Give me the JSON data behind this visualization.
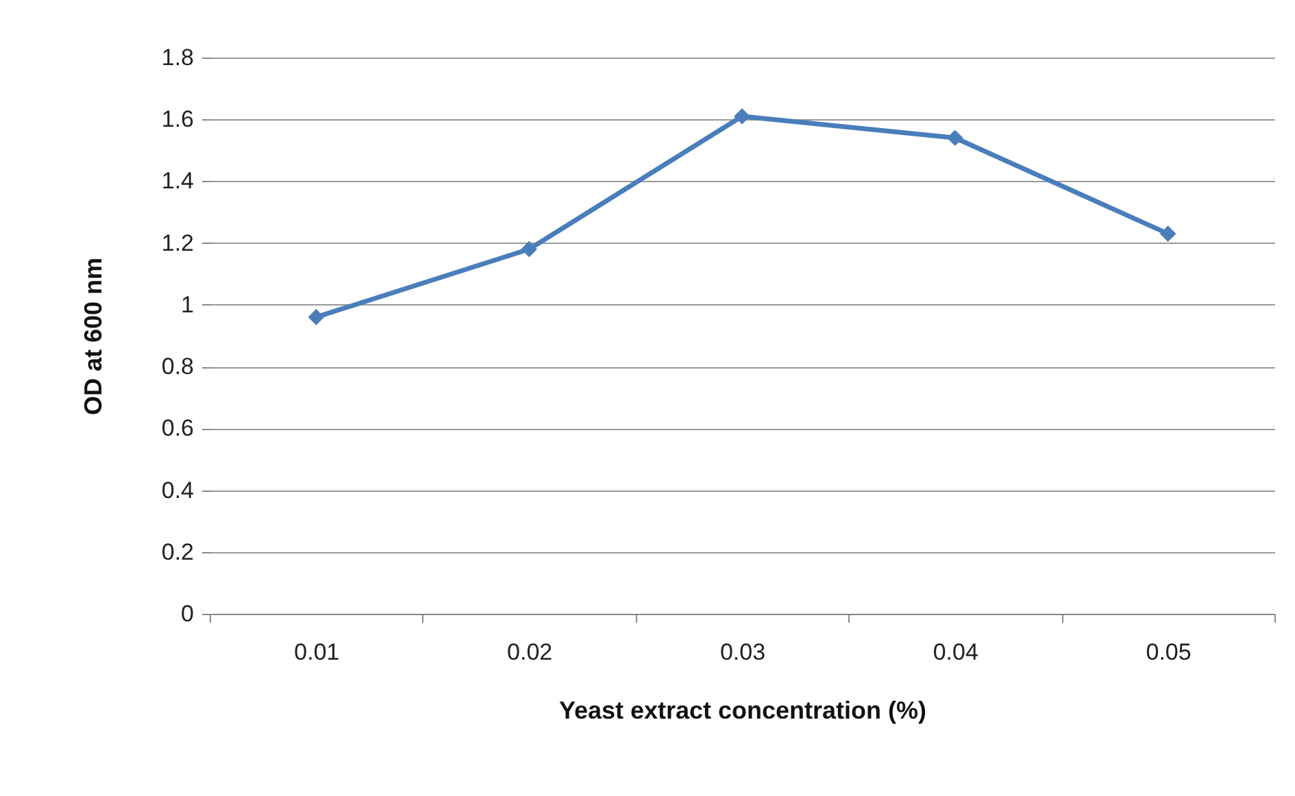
{
  "chart_data": {
    "type": "line",
    "xlabel": "Yeast extract concentration (%)",
    "ylabel": "OD at 600 nm",
    "categories": [
      "0.01",
      "0.02",
      "0.03",
      "0.04",
      "0.05"
    ],
    "series": [
      {
        "color": "#4a7ebb",
        "values": [
          0.96,
          1.18,
          1.61,
          1.54,
          1.23
        ]
      }
    ],
    "ylim": [
      0,
      1.8
    ],
    "yticks": [
      0,
      0.2,
      0.4,
      0.6,
      0.8,
      1,
      1.2,
      1.4,
      1.6,
      1.8
    ],
    "grid": "y",
    "marker": "diamond",
    "line_style": "solid"
  }
}
